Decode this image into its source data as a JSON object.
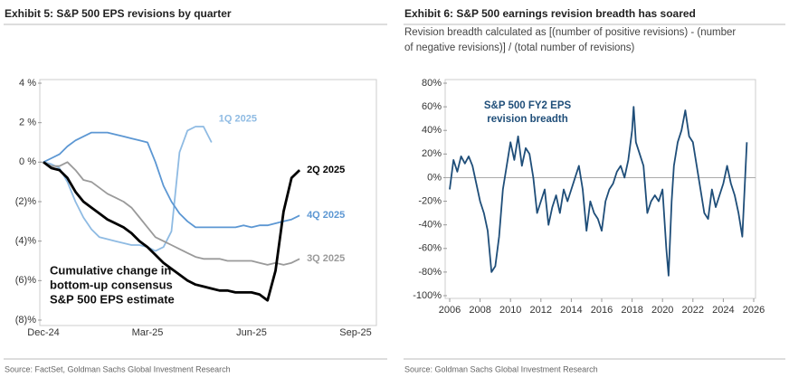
{
  "chart_data": [
    {
      "type": "line",
      "title": "Exhibit 5: S&P 500 EPS revisions by quarter",
      "categories": [
        "Dec-24",
        null,
        null,
        null,
        null,
        null,
        null,
        null,
        null,
        null,
        null,
        null,
        null,
        "Mar-25",
        null,
        null,
        null,
        null,
        null,
        null,
        null,
        null,
        null,
        null,
        null,
        null,
        "Jun-25",
        null,
        null,
        null,
        null,
        null,
        null,
        null,
        null,
        null,
        null,
        null,
        null,
        "Sep-25"
      ],
      "ylim": [
        -8,
        4
      ],
      "yticks": [
        {
          "value": 4,
          "label": "4 %"
        },
        {
          "value": 2,
          "label": "2 %"
        },
        {
          "value": 0,
          "label": "0 %"
        },
        {
          "value": -2,
          "label": "(2)%"
        },
        {
          "value": -4,
          "label": "(4)%"
        },
        {
          "value": -6,
          "label": "(6)%"
        },
        {
          "value": -8,
          "label": "(8)%"
        }
      ],
      "annotation": [
        "Cumulative change in",
        "bottom-up consensus",
        "S&P 500 EPS estimate"
      ],
      "source": "Source: FactSet, Goldman Sachs Global Investment Research",
      "series": [
        {
          "name": "1Q 2025",
          "color": "#8fbbe3",
          "width": 1.8,
          "values": [
            0,
            -0.1,
            -0.3,
            -1,
            -2,
            -2.8,
            -3.4,
            -3.8,
            -3.9,
            -4,
            -4.1,
            -4.2,
            -4.2,
            -4.3,
            -4.5,
            -4.3,
            -3.5,
            0.5,
            1.6,
            1.8,
            1.8,
            1.0,
            null,
            null,
            null,
            null,
            null,
            null,
            null,
            null,
            null,
            null,
            null,
            null,
            null,
            null,
            null,
            null,
            null,
            null
          ]
        },
        {
          "name": "4Q 2025",
          "color": "#5c97d3",
          "width": 1.8,
          "values": [
            0,
            0.2,
            0.4,
            0.8,
            1.1,
            1.3,
            1.5,
            1.5,
            1.5,
            1.4,
            1.3,
            1.2,
            1.1,
            1.0,
            0,
            -1.2,
            -2,
            -2.6,
            -3,
            -3.3,
            -3.3,
            -3.3,
            -3.3,
            -3.3,
            -3.3,
            -3.2,
            -3.3,
            -3.2,
            -3.2,
            -3.1,
            -3.0,
            -2.9,
            -2.7,
            null,
            null,
            null,
            null,
            null,
            null,
            null
          ]
        },
        {
          "name": "3Q 2025",
          "color": "#9a9a9a",
          "width": 1.8,
          "values": [
            0,
            -0.2,
            -0.2,
            0,
            -0.4,
            -0.9,
            -1,
            -1.3,
            -1.6,
            -1.8,
            -2,
            -2.3,
            -2.8,
            -3.3,
            -3.8,
            -4,
            -4.2,
            -4.4,
            -4.6,
            -4.8,
            -4.9,
            -4.9,
            -4.9,
            -5,
            -5,
            -5,
            -5,
            -5.1,
            -5.2,
            -5.1,
            -5.2,
            -5.1,
            -4.9,
            null,
            null,
            null,
            null,
            null,
            null,
            null
          ]
        },
        {
          "name": "2Q 2025",
          "color": "#000000",
          "width": 2.8,
          "values": [
            0,
            -0.3,
            -0.4,
            -0.8,
            -1.5,
            -2,
            -2.3,
            -2.6,
            -2.9,
            -3.1,
            -3.3,
            -3.6,
            -4,
            -4.3,
            -4.7,
            -5.1,
            -5.4,
            -5.7,
            -6,
            -6.2,
            -6.3,
            -6.4,
            -6.5,
            -6.5,
            -6.6,
            -6.6,
            -6.6,
            -6.7,
            -7,
            -5.5,
            -2.5,
            -0.8,
            -0.4,
            null,
            null,
            null,
            null,
            null,
            null,
            null
          ]
        }
      ]
    },
    {
      "type": "line",
      "title": "Exhibit 6: S&P 500 earnings revision breadth has soared",
      "subtitle": [
        "Revision breadth calculated as [(number of positive revisions) - (number",
        "of negative revisions)] / (total number of revisions)"
      ],
      "x": [
        2006,
        2006.25,
        2006.5,
        2006.75,
        2007,
        2007.25,
        2007.5,
        2007.75,
        2008,
        2008.25,
        2008.5,
        2008.75,
        2009,
        2009.25,
        2009.5,
        2009.75,
        2010,
        2010.25,
        2010.5,
        2010.75,
        2011,
        2011.25,
        2011.5,
        2011.75,
        2012,
        2012.25,
        2012.5,
        2012.75,
        2013,
        2013.25,
        2013.5,
        2013.75,
        2014,
        2014.25,
        2014.5,
        2014.75,
        2015,
        2015.25,
        2015.5,
        2015.75,
        2016,
        2016.25,
        2016.5,
        2016.75,
        2017,
        2017.25,
        2017.5,
        2017.75,
        2018,
        2018.1,
        2018.25,
        2018.5,
        2018.75,
        2019,
        2019.25,
        2019.5,
        2019.75,
        2020,
        2020.25,
        2020.4,
        2020.6,
        2020.75,
        2021,
        2021.25,
        2021.5,
        2021.75,
        2022,
        2022.25,
        2022.5,
        2022.75,
        2023,
        2023.25,
        2023.5,
        2023.75,
        2024,
        2024.25,
        2024.5,
        2024.75,
        2025,
        2025.25,
        2025.4,
        2025.55
      ],
      "series": [
        {
          "name": "S&P 500 FY2 EPS revision breadth",
          "color": "#1f4e79",
          "width": 1.8,
          "values": [
            -10,
            15,
            5,
            18,
            12,
            18,
            10,
            -5,
            -20,
            -30,
            -45,
            -80,
            -75,
            -50,
            -10,
            10,
            30,
            15,
            35,
            10,
            25,
            20,
            0,
            -30,
            -20,
            -10,
            -40,
            -25,
            -15,
            -30,
            -10,
            -20,
            -10,
            0,
            10,
            -10,
            -45,
            -20,
            -30,
            -35,
            -45,
            -20,
            -10,
            -5,
            5,
            10,
            0,
            15,
            40,
            60,
            30,
            20,
            10,
            -30,
            -20,
            -15,
            -20,
            -10,
            -60,
            -83,
            -20,
            10,
            30,
            40,
            57,
            35,
            30,
            10,
            -10,
            -30,
            -35,
            -10,
            -25,
            -15,
            -5,
            10,
            -5,
            -15,
            -30,
            -50,
            -10,
            30
          ]
        }
      ],
      "annotation": [
        "S&P 500 FY2 EPS",
        "revision breadth"
      ],
      "xlim": [
        2006,
        2026
      ],
      "xticks": [
        2006,
        2008,
        2010,
        2012,
        2014,
        2016,
        2018,
        2020,
        2022,
        2024,
        2026
      ],
      "ylim": [
        -100,
        80
      ],
      "yticks": [
        {
          "value": 80,
          "label": "80%"
        },
        {
          "value": 60,
          "label": "60%"
        },
        {
          "value": 40,
          "label": "40%"
        },
        {
          "value": 20,
          "label": "20%"
        },
        {
          "value": 0,
          "label": "0%"
        },
        {
          "value": -20,
          "label": "-20%"
        },
        {
          "value": -40,
          "label": "-40%"
        },
        {
          "value": -60,
          "label": "-60%"
        },
        {
          "value": -80,
          "label": "-80%"
        },
        {
          "value": -100,
          "label": "-100%"
        }
      ],
      "zero_line": true,
      "source": "Source: Goldman Sachs Global Investment Research"
    }
  ]
}
